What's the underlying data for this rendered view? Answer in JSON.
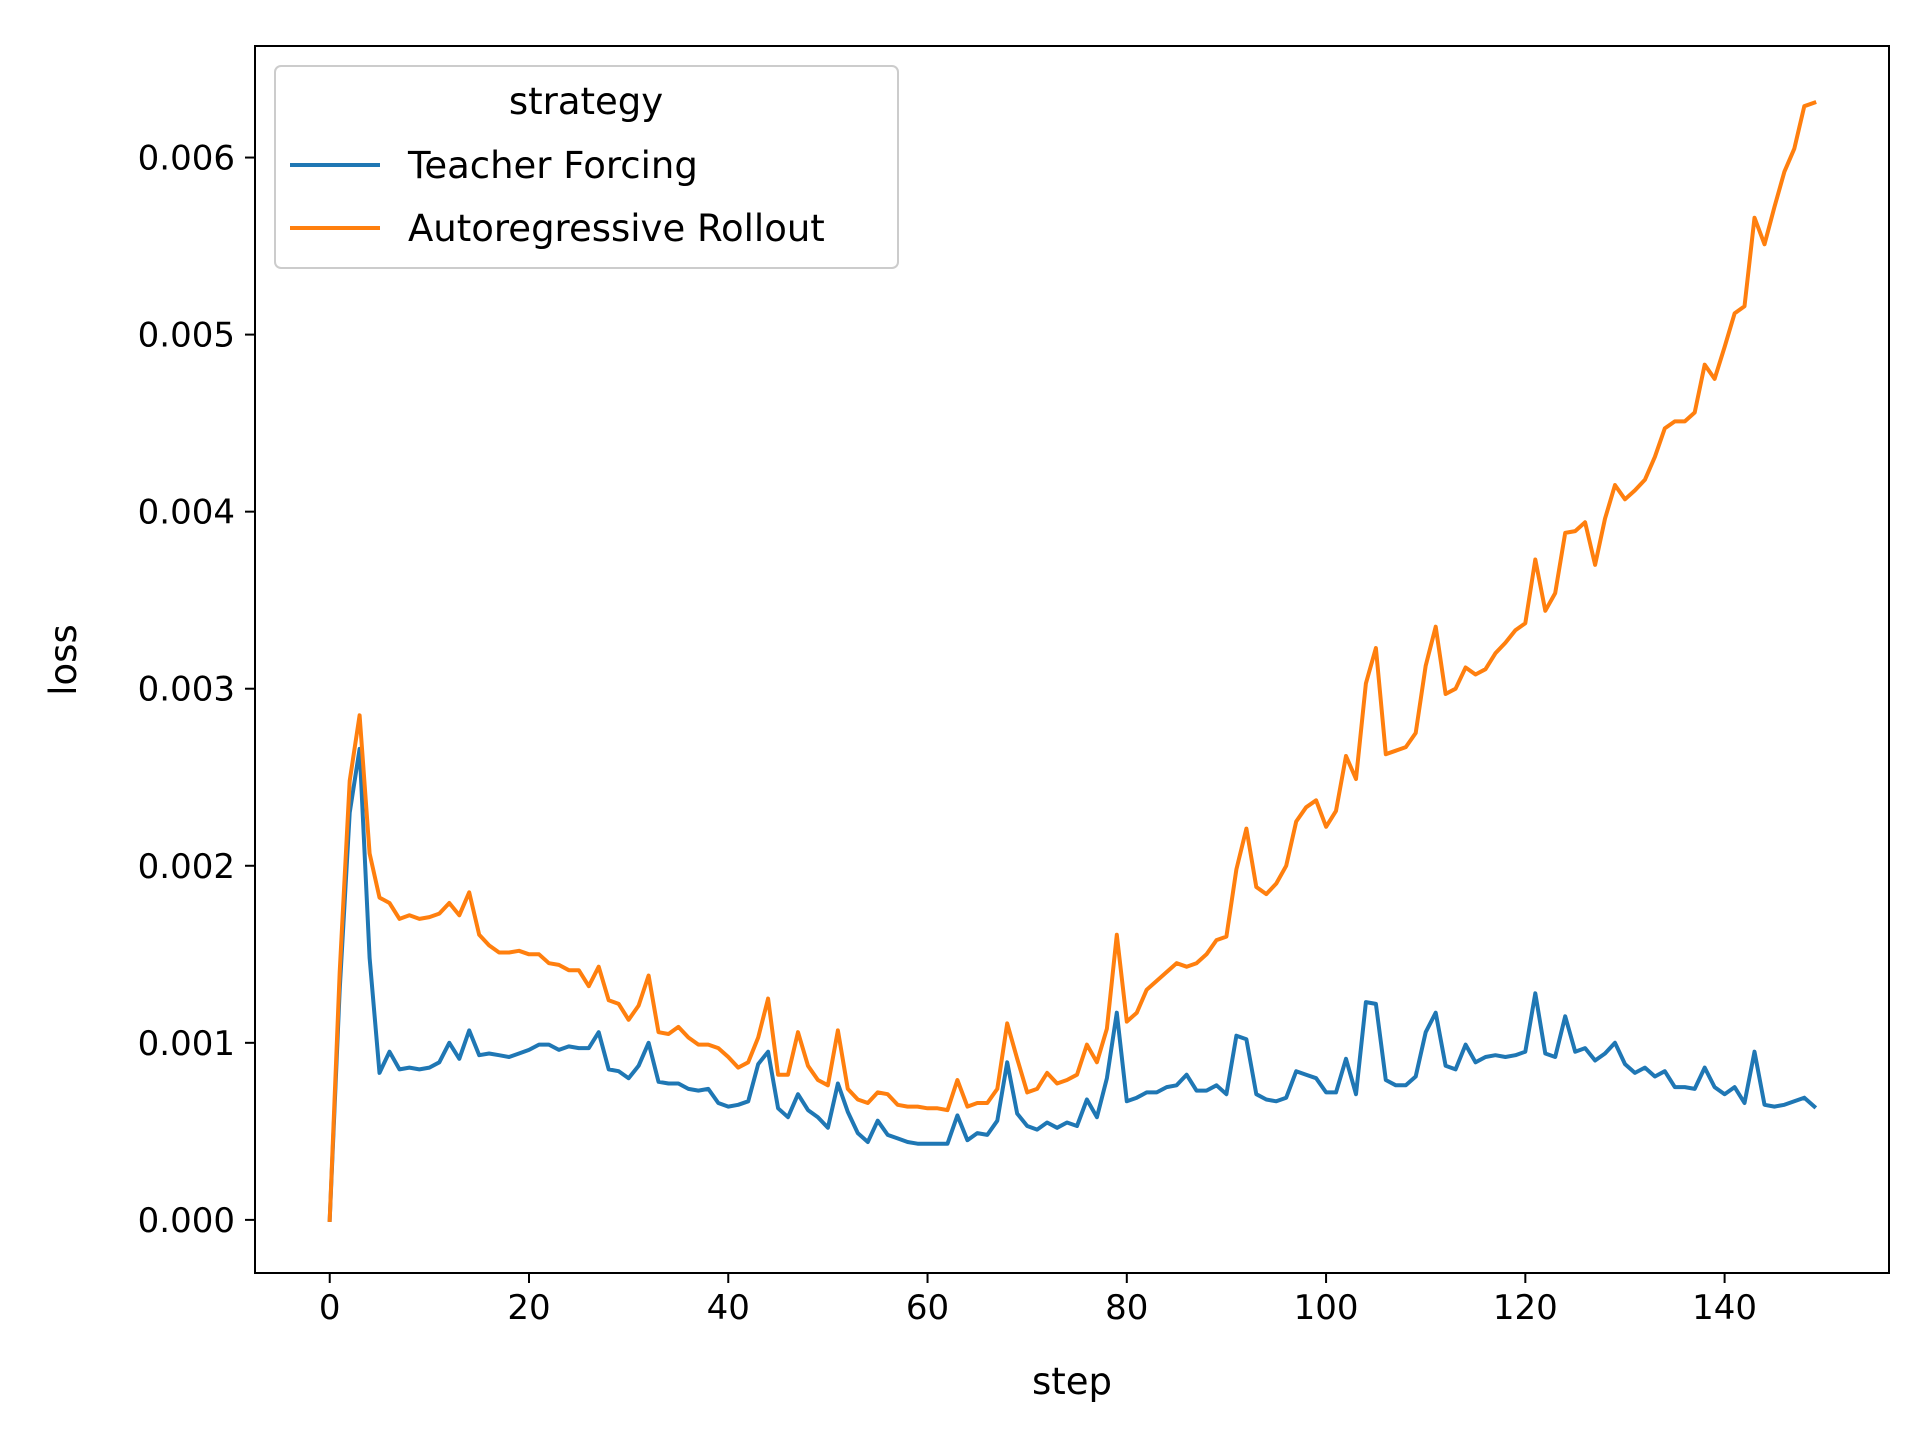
{
  "chart_data": {
    "type": "line",
    "xlabel": "step",
    "ylabel": "loss",
    "xlim": [
      -7.5,
      156.5
    ],
    "ylim": [
      -0.0003,
      0.00663
    ],
    "xticks": [
      0,
      20,
      40,
      60,
      80,
      100,
      120,
      140
    ],
    "yticks": [
      0.0,
      0.001,
      0.002,
      0.003,
      0.004,
      0.005,
      0.006
    ],
    "xtick_labels": [
      "0",
      "20",
      "40",
      "60",
      "80",
      "100",
      "120",
      "140"
    ],
    "ytick_labels": [
      "0.000",
      "0.001",
      "0.002",
      "0.003",
      "0.004",
      "0.005",
      "0.006"
    ],
    "grid": false,
    "legend": {
      "title": "strategy",
      "position": "top-left"
    },
    "colors": {
      "Teacher Forcing": "#1f77b4",
      "Autoregressive Rollout": "#ff7f0e"
    },
    "series": [
      {
        "name": "Teacher Forcing",
        "x": [
          0,
          1,
          2,
          3,
          4,
          5,
          6,
          7,
          8,
          9,
          10,
          11,
          12,
          13,
          14,
          15,
          16,
          17,
          18,
          19,
          20,
          21,
          22,
          23,
          24,
          25,
          26,
          27,
          28,
          29,
          30,
          31,
          32,
          33,
          34,
          35,
          36,
          37,
          38,
          39,
          40,
          41,
          42,
          43,
          44,
          45,
          46,
          47,
          48,
          49,
          50,
          51,
          52,
          53,
          54,
          55,
          56,
          57,
          58,
          59,
          60,
          61,
          62,
          63,
          64,
          65,
          66,
          67,
          68,
          69,
          70,
          71,
          72,
          73,
          74,
          75,
          76,
          77,
          78,
          79,
          80,
          81,
          82,
          83,
          84,
          85,
          86,
          87,
          88,
          89,
          90,
          91,
          92,
          93,
          94,
          95,
          96,
          97,
          98,
          99,
          100,
          101,
          102,
          103,
          104,
          105,
          106,
          107,
          108,
          109,
          110,
          111,
          112,
          113,
          114,
          115,
          116,
          117,
          118,
          119,
          120,
          121,
          122,
          123,
          124,
          125,
          126,
          127,
          128,
          129,
          130,
          131,
          132,
          133,
          134,
          135,
          136,
          137,
          138,
          139,
          140,
          141,
          142,
          143,
          144,
          145,
          146,
          147,
          148,
          149
        ],
        "y": [
          0.0,
          0.0013,
          0.0023,
          0.00266,
          0.00148,
          0.00083,
          0.00095,
          0.00085,
          0.00086,
          0.00085,
          0.00086,
          0.00089,
          0.001,
          0.00091,
          0.00107,
          0.00093,
          0.00094,
          0.00093,
          0.00092,
          0.00094,
          0.00096,
          0.00099,
          0.00099,
          0.00096,
          0.00098,
          0.00097,
          0.00097,
          0.00106,
          0.00085,
          0.00084,
          0.0008,
          0.00087,
          0.001,
          0.00078,
          0.00077,
          0.00077,
          0.00074,
          0.00073,
          0.00074,
          0.00066,
          0.00064,
          0.00065,
          0.00067,
          0.00088,
          0.00095,
          0.00063,
          0.00058,
          0.00071,
          0.00062,
          0.00058,
          0.00052,
          0.00077,
          0.00061,
          0.00049,
          0.00044,
          0.00056,
          0.00048,
          0.00046,
          0.00044,
          0.00043,
          0.00043,
          0.00043,
          0.00043,
          0.00059,
          0.00045,
          0.00049,
          0.00048,
          0.00056,
          0.00089,
          0.0006,
          0.00053,
          0.00051,
          0.00055,
          0.00052,
          0.00055,
          0.00053,
          0.00068,
          0.00058,
          0.0008,
          0.00117,
          0.00067,
          0.00069,
          0.00072,
          0.00072,
          0.00075,
          0.00076,
          0.00082,
          0.00073,
          0.00073,
          0.00076,
          0.00071,
          0.00104,
          0.00102,
          0.00071,
          0.00068,
          0.00067,
          0.00069,
          0.00084,
          0.00082,
          0.0008,
          0.00072,
          0.00072,
          0.00091,
          0.00071,
          0.00123,
          0.00122,
          0.00079,
          0.00076,
          0.00076,
          0.00081,
          0.00106,
          0.00117,
          0.00087,
          0.00085,
          0.00099,
          0.00089,
          0.00092,
          0.00093,
          0.00092,
          0.00093,
          0.00095,
          0.00128,
          0.00094,
          0.00092,
          0.00115,
          0.00095,
          0.00097,
          0.0009,
          0.00094,
          0.001,
          0.00088,
          0.00083,
          0.00086,
          0.00081,
          0.00084,
          0.00075,
          0.00075,
          0.00074,
          0.00086,
          0.00075,
          0.00071,
          0.00075,
          0.00066,
          0.00095,
          0.00065,
          0.00064,
          0.00065,
          0.00067,
          0.00069,
          0.00064
        ]
      },
      {
        "name": "Autoregressive Rollout",
        "x": [
          0,
          1,
          2,
          3,
          4,
          5,
          6,
          7,
          8,
          9,
          10,
          11,
          12,
          13,
          14,
          15,
          16,
          17,
          18,
          19,
          20,
          21,
          22,
          23,
          24,
          25,
          26,
          27,
          28,
          29,
          30,
          31,
          32,
          33,
          34,
          35,
          36,
          37,
          38,
          39,
          40,
          41,
          42,
          43,
          44,
          45,
          46,
          47,
          48,
          49,
          50,
          51,
          52,
          53,
          54,
          55,
          56,
          57,
          58,
          59,
          60,
          61,
          62,
          63,
          64,
          65,
          66,
          67,
          68,
          69,
          70,
          71,
          72,
          73,
          74,
          75,
          76,
          77,
          78,
          79,
          80,
          81,
          82,
          83,
          84,
          85,
          86,
          87,
          88,
          89,
          90,
          91,
          92,
          93,
          94,
          95,
          96,
          97,
          98,
          99,
          100,
          101,
          102,
          103,
          104,
          105,
          106,
          107,
          108,
          109,
          110,
          111,
          112,
          113,
          114,
          115,
          116,
          117,
          118,
          119,
          120,
          121,
          122,
          123,
          124,
          125,
          126,
          127,
          128,
          129,
          130,
          131,
          132,
          133,
          134,
          135,
          136,
          137,
          138,
          139,
          140,
          141,
          142,
          143,
          144,
          145,
          146,
          147,
          148,
          149
        ],
        "y": [
          0.0,
          0.0014,
          0.00248,
          0.00285,
          0.00207,
          0.00182,
          0.00179,
          0.0017,
          0.00172,
          0.0017,
          0.00171,
          0.00173,
          0.00179,
          0.00172,
          0.00185,
          0.00161,
          0.00155,
          0.00151,
          0.00151,
          0.00152,
          0.0015,
          0.0015,
          0.00145,
          0.00144,
          0.00141,
          0.00141,
          0.00132,
          0.00143,
          0.00124,
          0.00122,
          0.00113,
          0.00121,
          0.00138,
          0.00106,
          0.00105,
          0.00109,
          0.00103,
          0.00099,
          0.00099,
          0.00097,
          0.00092,
          0.00086,
          0.00089,
          0.00103,
          0.00125,
          0.00082,
          0.00082,
          0.00106,
          0.00087,
          0.00079,
          0.00076,
          0.00107,
          0.00074,
          0.00068,
          0.00066,
          0.00072,
          0.00071,
          0.00065,
          0.00064,
          0.00064,
          0.00063,
          0.00063,
          0.00062,
          0.00079,
          0.00064,
          0.00066,
          0.00066,
          0.00074,
          0.00111,
          0.00091,
          0.00072,
          0.00074,
          0.00083,
          0.00077,
          0.00079,
          0.00082,
          0.00099,
          0.00089,
          0.00108,
          0.00161,
          0.00112,
          0.00117,
          0.0013,
          0.00135,
          0.0014,
          0.00145,
          0.00143,
          0.00145,
          0.0015,
          0.00158,
          0.0016,
          0.00198,
          0.00221,
          0.00188,
          0.00184,
          0.0019,
          0.002,
          0.00225,
          0.00233,
          0.00237,
          0.00222,
          0.00231,
          0.00262,
          0.00249,
          0.00303,
          0.00323,
          0.00263,
          0.00265,
          0.00267,
          0.00275,
          0.00313,
          0.00335,
          0.00297,
          0.003,
          0.00312,
          0.00308,
          0.00311,
          0.0032,
          0.00326,
          0.00333,
          0.00337,
          0.00373,
          0.00344,
          0.00354,
          0.00388,
          0.00389,
          0.00394,
          0.0037,
          0.00396,
          0.00415,
          0.00407,
          0.00412,
          0.00418,
          0.00431,
          0.00447,
          0.00451,
          0.00451,
          0.00456,
          0.00483,
          0.00475,
          0.00493,
          0.00512,
          0.00516,
          0.00566,
          0.00551,
          0.00572,
          0.00592,
          0.00605,
          0.00629,
          0.00631
        ]
      }
    ]
  }
}
